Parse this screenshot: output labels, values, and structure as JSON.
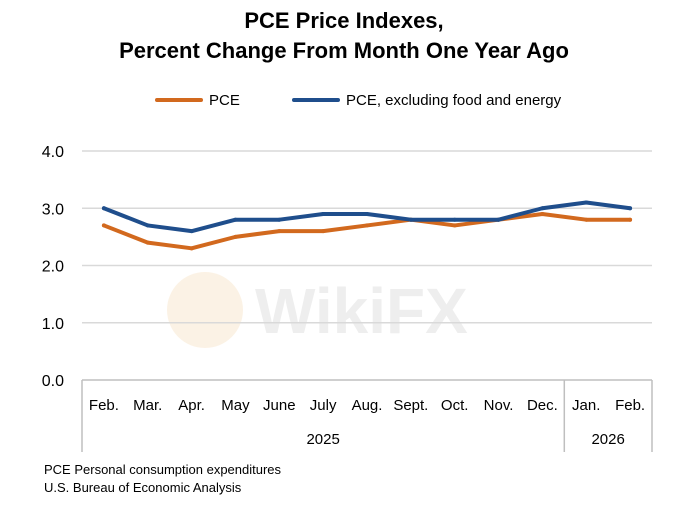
{
  "title_lines": [
    "PCE Price Indexes,",
    "Percent Change From Month One Year Ago"
  ],
  "watermark_text": "WikiFX",
  "footnotes": [
    "PCE Personal consumption expenditures",
    "U.S. Bureau of Economic Analysis"
  ],
  "colors": {
    "pce": "#d2691e",
    "core": "#1f4e8c",
    "grid": "#d9d9d9",
    "axis": "#bfbfbf"
  },
  "chart_data": {
    "type": "line",
    "title": "PCE Price Indexes, Percent Change From Month One Year Ago",
    "categories": [
      "Feb.",
      "Mar.",
      "Apr.",
      "May",
      "June",
      "July",
      "Aug.",
      "Sept.",
      "Oct.",
      "Nov.",
      "Dec.",
      "Jan.",
      "Feb."
    ],
    "year_groups": [
      {
        "label": "2025",
        "count": 11
      },
      {
        "label": "2026",
        "count": 2
      }
    ],
    "series": [
      {
        "name": "PCE",
        "color": "#d2691e",
        "values": [
          2.7,
          2.4,
          2.3,
          2.5,
          2.6,
          2.6,
          2.7,
          2.8,
          2.7,
          2.8,
          2.9,
          2.8,
          2.8
        ]
      },
      {
        "name": "PCE, excluding food and energy",
        "color": "#1f4e8c",
        "values": [
          3.0,
          2.7,
          2.6,
          2.8,
          2.8,
          2.9,
          2.9,
          2.8,
          2.8,
          2.8,
          3.0,
          3.1,
          3.0
        ]
      }
    ],
    "yticks": [
      "0.0",
      "1.0",
      "2.0",
      "3.0",
      "4.0"
    ],
    "ylim": [
      0,
      4
    ],
    "grid": true,
    "legend_position": "top-center"
  }
}
